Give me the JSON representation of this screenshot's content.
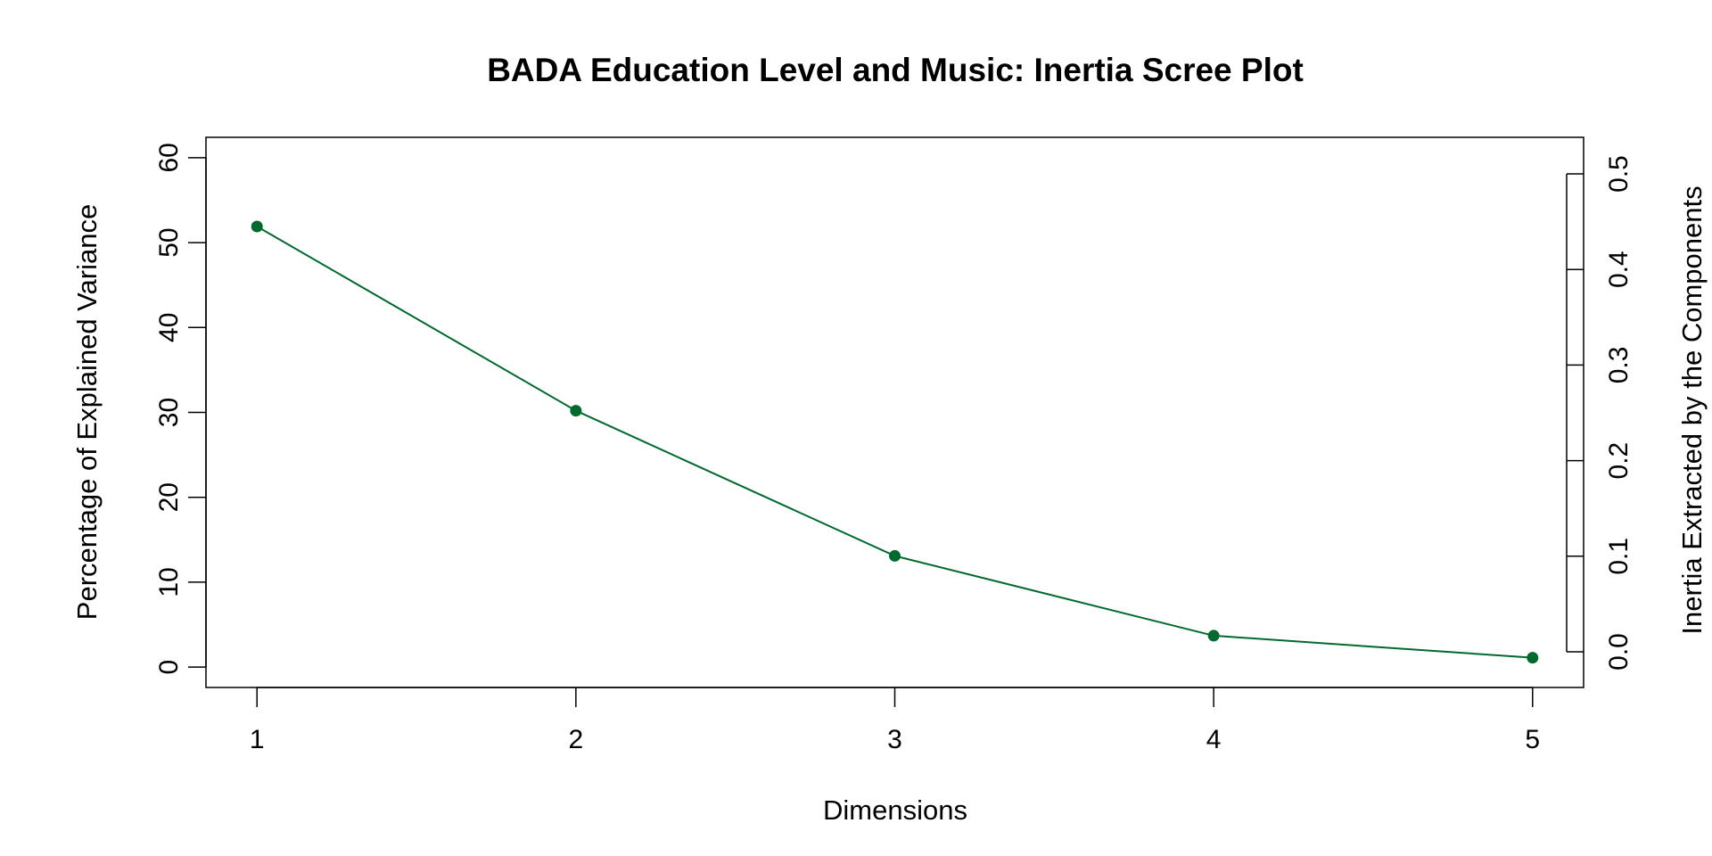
{
  "chart_data": {
    "type": "line",
    "title": "BADA Education Level and Music: Inertia Scree Plot",
    "xlabel": "Dimensions",
    "ylabel": "Percentage of Explained Variance",
    "y2label": "Inertia Extracted by the Components",
    "categories": [
      "1",
      "2",
      "3",
      "4",
      "5"
    ],
    "x": [
      1,
      2,
      3,
      4,
      5
    ],
    "series": [
      {
        "name": "Percentage of Explained Variance",
        "values": [
          51.9,
          30.2,
          13.1,
          3.7,
          1.1
        ],
        "color": "#006a2e"
      }
    ],
    "xlim": [
      0.84,
      5.16
    ],
    "ylim": [
      -2.4,
      62.4
    ],
    "yticks": [
      0,
      10,
      20,
      30,
      40,
      50,
      60
    ],
    "y_tick_labels": [
      "0",
      "10",
      "20",
      "30",
      "40",
      "50",
      "60"
    ],
    "y2lim": [
      0.0,
      0.5
    ],
    "y2ticks": [
      0.0,
      0.1,
      0.2,
      0.3,
      0.4,
      0.5
    ],
    "y2_tick_labels": [
      "0.0",
      "0.1",
      "0.2",
      "0.3",
      "0.4",
      "0.5"
    ],
    "grid": false
  }
}
